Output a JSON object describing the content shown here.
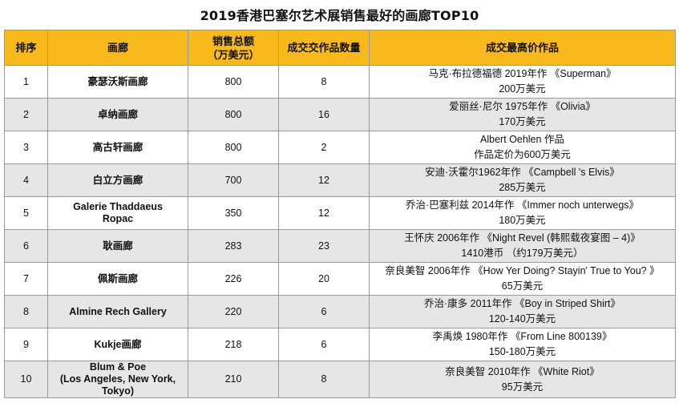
{
  "title": "2019香港巴塞尔艺术展销售最好的画廊TOP10",
  "header": {
    "rank": "排序",
    "gallery": "画廊",
    "sales_l1": "销售总额",
    "sales_l2": "（万美元）",
    "count": "成交交作品数量",
    "top_work": "成交最高价作品"
  },
  "rows": [
    {
      "rank": "1",
      "gallery": [
        "豪瑟沃斯画廊"
      ],
      "sales": "800",
      "count": "8",
      "work": [
        "马克·布拉德福德 2019年作 《Superman》",
        "200万美元"
      ]
    },
    {
      "rank": "2",
      "gallery": [
        "卓纳画廊"
      ],
      "sales": "800",
      "count": "16",
      "work": [
        "爱丽丝·尼尔 1975年作 《Olivia》",
        "170万美元"
      ]
    },
    {
      "rank": "3",
      "gallery": [
        "高古轩画廊"
      ],
      "sales": "800",
      "count": "2",
      "work": [
        "Albert Oehlen 作品",
        "作品定价为600万美元"
      ]
    },
    {
      "rank": "4",
      "gallery": [
        "白立方画廊"
      ],
      "sales": "700",
      "count": "12",
      "work": [
        "安迪·沃霍尔1962年作 《Campbell 's Elvis》",
        "285万美元"
      ]
    },
    {
      "rank": "5",
      "gallery": [
        "Galerie Thaddaeus",
        "Ropac"
      ],
      "sales": "350",
      "count": "12",
      "work": [
        "乔治·巴塞利兹 2014年作 《Immer noch unterwegs》",
        "180万美元"
      ]
    },
    {
      "rank": "6",
      "gallery": [
        "耿画廊"
      ],
      "sales": "283",
      "count": "23",
      "work": [
        "王怀庆 2006年作 《Night Revel (韩熙载夜宴图 – 4)》",
        "1410港币 （约179万美元）"
      ]
    },
    {
      "rank": "7",
      "gallery": [
        "佩斯画廊"
      ],
      "sales": "226",
      "count": "20",
      "work": [
        "奈良美智 2006年作 《How Yer Doing? Stayin' True to You? 》",
        "65万美元"
      ]
    },
    {
      "rank": "8",
      "gallery": [
        "Almine Rech Gallery"
      ],
      "sales": "220",
      "count": "6",
      "work": [
        "乔治·康多 2011年作 《Boy in Striped Shirt》",
        "120-140万美元"
      ]
    },
    {
      "rank": "9",
      "gallery": [
        "Kukje画廊"
      ],
      "sales": "218",
      "count": "6",
      "work": [
        "李禹焕 1980年作 《From Line 800139》",
        "150-180万美元"
      ]
    },
    {
      "rank": "10",
      "gallery": [
        "Blum & Poe",
        "(Los Angeles, New York,",
        "Tokyo)"
      ],
      "sales": "210",
      "count": "8",
      "work": [
        "奈良美智 2010年作 《White Riot》",
        "95万美元"
      ]
    }
  ],
  "colors": {
    "header_bg": "#f7b91c",
    "alt_row_bg": "#e6e6e6",
    "border": "#9a9a9a"
  }
}
